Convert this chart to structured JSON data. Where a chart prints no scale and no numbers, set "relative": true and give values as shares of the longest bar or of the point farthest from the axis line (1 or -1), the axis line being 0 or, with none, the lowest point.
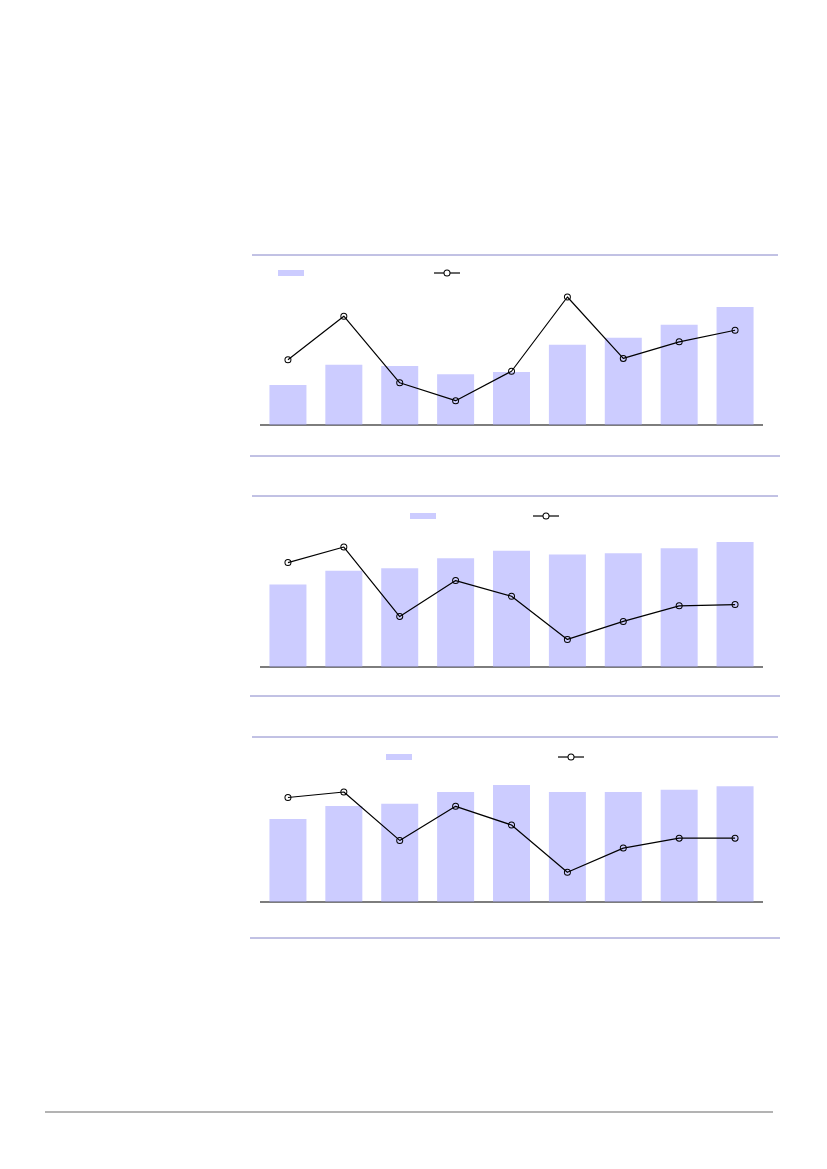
{
  "chart_data": [
    {
      "type": "bar",
      "relative": true,
      "color": "#ccccff",
      "categories": [
        null,
        null,
        null,
        null,
        null,
        null,
        null,
        null,
        null
      ],
      "values": [
        0.34,
        0.51,
        0.5,
        0.43,
        0.45,
        0.68,
        0.74,
        0.85,
        1.0
      ]
    },
    {
      "type": "line",
      "relative": true,
      "color": "#000000",
      "marker": "circle",
      "categories": [
        null,
        null,
        null,
        null,
        null,
        null,
        null,
        null,
        null
      ],
      "values": [
        0.51,
        0.85,
        0.33,
        0.19,
        0.42,
        1.0,
        0.52,
        0.65,
        0.74
      ]
    },
    {
      "type": "bar",
      "relative": true,
      "color": "#ccccff",
      "categories": [
        null,
        null,
        null,
        null,
        null,
        null,
        null,
        null,
        null
      ],
      "values": [
        0.66,
        0.77,
        0.79,
        0.87,
        0.93,
        0.9,
        0.91,
        0.95,
        1.0
      ]
    },
    {
      "type": "line",
      "relative": true,
      "color": "#000000",
      "marker": "circle",
      "categories": [
        null,
        null,
        null,
        null,
        null,
        null,
        null,
        null,
        null
      ],
      "values": [
        0.87,
        1.0,
        0.42,
        0.72,
        0.59,
        0.23,
        0.38,
        0.51,
        0.52
      ]
    },
    {
      "type": "bar",
      "relative": true,
      "color": "#ccccff",
      "categories": [
        null,
        null,
        null,
        null,
        null,
        null,
        null,
        null,
        null
      ],
      "values": [
        0.71,
        0.82,
        0.84,
        0.94,
        1.0,
        0.94,
        0.94,
        0.96,
        0.99
      ]
    },
    {
      "type": "line",
      "relative": true,
      "color": "#000000",
      "marker": "circle",
      "categories": [
        null,
        null,
        null,
        null,
        null,
        null,
        null,
        null,
        null
      ],
      "values": [
        0.95,
        1.0,
        0.56,
        0.87,
        0.7,
        0.27,
        0.49,
        0.58,
        0.58
      ]
    }
  ]
}
